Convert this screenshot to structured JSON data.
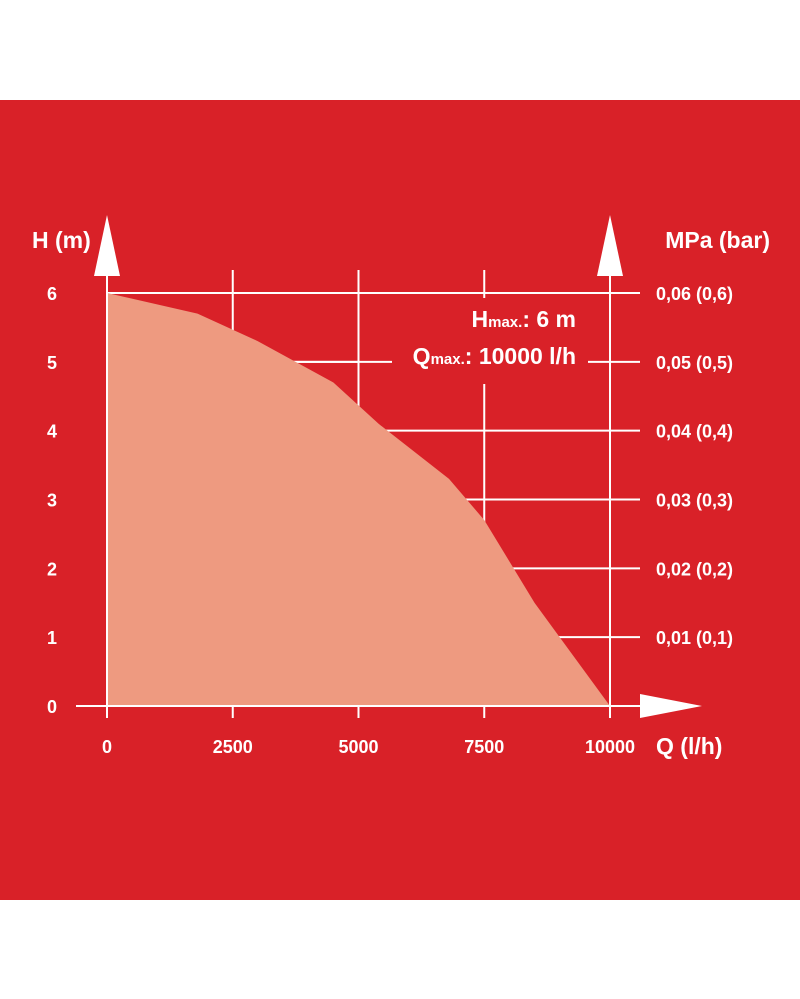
{
  "chart_data": {
    "type": "area",
    "title": "",
    "xlabel": "Q (l/h)",
    "ylabel": "H (m)",
    "y2label": "MPa (bar)",
    "xlim": [
      0,
      10000
    ],
    "ylim": [
      0,
      6
    ],
    "x_ticks": [
      "0",
      "2500",
      "5000",
      "7500",
      "10000"
    ],
    "y_ticks": [
      "0",
      "1",
      "2",
      "3",
      "4",
      "5",
      "6"
    ],
    "y2_ticks": [
      "0,01 (0,1)",
      "0,02 (0,2)",
      "0,03 (0,3)",
      "0,04 (0,4)",
      "0,05 (0,5)",
      "0,06 (0,6)"
    ],
    "grid": true,
    "legend": "none",
    "x": [
      0,
      1800,
      3000,
      4500,
      5400,
      6800,
      7500,
      8500,
      10000
    ],
    "y": [
      6.0,
      5.7,
      5.3,
      4.7,
      4.1,
      3.3,
      2.7,
      1.5,
      0.0
    ],
    "annotations": {
      "hmax_main": "H",
      "hmax_sub": "max.",
      "hmax_value": ": 6 m",
      "qmax_main": "Q",
      "qmax_sub": "max.",
      "qmax_value": ": 10000 l/h"
    },
    "colors": {
      "background": "#d92128",
      "fill": "#ee9a80",
      "lines": "#ffffff"
    }
  }
}
